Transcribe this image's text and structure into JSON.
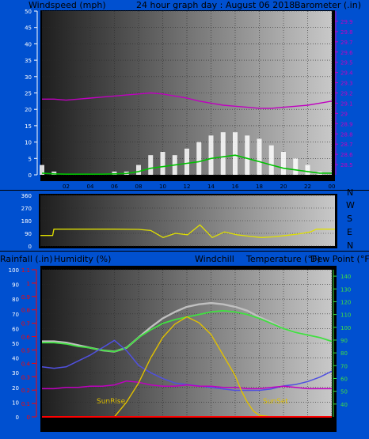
{
  "header": {
    "windspeed_label": "Windspeed (mph)",
    "title": "24 hour graph day : August 06 2018",
    "barometer_label": "Barometer (.in)"
  },
  "direction_labels": [
    "N",
    "W",
    "S",
    "E",
    "N"
  ],
  "bottom_header": {
    "rainfall_label": "Rainfall (.in)",
    "humidity_label": "Humidity (%)",
    "windchill_label": "Windchill",
    "temperature_label": "Temperature (°F)",
    "dewpoint_label": "Dew Point (°F)"
  },
  "annotations": {
    "sunrise": "SunRise",
    "sunset": "SunSet"
  },
  "x_ticks": [
    "02",
    "04",
    "06",
    "08",
    "10",
    "12",
    "14",
    "16",
    "18",
    "20",
    "22",
    "00"
  ],
  "colors": {
    "background": "#000000",
    "frame_blue": "#0050d0",
    "wind_gust": "#ffffff",
    "wind_avg": "#00c000",
    "barometer": "#c000c0",
    "direction": "#e0e000",
    "temperature": "#c0c0c0",
    "humidity": "#5050e0",
    "dewpoint": "#c000c0",
    "windchill": "#40e040",
    "solar": "#e0c000",
    "rainfall": "#ff0000"
  },
  "chart_data": [
    {
      "type": "line",
      "panel": "wind_barometer",
      "x_unit": "hour",
      "left_axis": {
        "label": "Windspeed (mph)",
        "range": [
          0,
          50
        ],
        "ticks": [
          0,
          5,
          10,
          15,
          20,
          25,
          30,
          35,
          40,
          45,
          50
        ]
      },
      "right_axis": {
        "label": "Barometer (.in)",
        "range": [
          28.4,
          30.0
        ],
        "ticks": [
          "28.5",
          "28.6",
          "28.7",
          "28.8",
          "28.9",
          "29",
          "29.1",
          "29.2",
          "29.3",
          "29.4",
          "29.5",
          "29.6",
          "29.7",
          "29.8",
          "29.9"
        ]
      },
      "series": [
        {
          "key": "wind_gust",
          "axis": "left",
          "x": [
            0,
            1,
            2,
            3,
            4,
            5,
            6,
            7,
            8,
            9,
            10,
            11,
            12,
            13,
            14,
            15,
            16,
            17,
            18,
            19,
            20,
            21,
            22,
            23,
            24
          ],
          "values": [
            3,
            1,
            0,
            0,
            0,
            0,
            1,
            1,
            3,
            6,
            7,
            6,
            8,
            10,
            12,
            13,
            13,
            12,
            11,
            9,
            7,
            5,
            3,
            1,
            0
          ]
        },
        {
          "key": "wind_avg",
          "axis": "left",
          "x": [
            0,
            1,
            2,
            3,
            4,
            5,
            6,
            7,
            8,
            9,
            10,
            11,
            12,
            13,
            14,
            15,
            16,
            17,
            18,
            19,
            20,
            21,
            22,
            23,
            24
          ],
          "values": [
            0.5,
            0.3,
            0.2,
            0.2,
            0.2,
            0.2,
            0.3,
            0.4,
            1,
            2,
            2.5,
            3,
            3.5,
            4,
            5,
            5.5,
            6,
            5,
            4,
            3,
            2,
            1.5,
            1,
            0.5,
            0.5
          ]
        },
        {
          "key": "barometer",
          "axis": "right",
          "x": [
            0,
            1,
            2,
            3,
            4,
            5,
            6,
            7,
            8,
            9,
            10,
            11,
            12,
            13,
            14,
            15,
            16,
            17,
            18,
            19,
            20,
            21,
            22,
            23,
            24
          ],
          "values": [
            29.14,
            29.14,
            29.13,
            29.14,
            29.15,
            29.16,
            29.17,
            29.18,
            29.19,
            29.2,
            29.19,
            29.17,
            29.15,
            29.12,
            29.1,
            29.08,
            29.07,
            29.06,
            29.05,
            29.05,
            29.06,
            29.07,
            29.08,
            29.1,
            29.12
          ]
        }
      ]
    },
    {
      "type": "line",
      "panel": "wind_direction",
      "x_unit": "hour",
      "left_axis": {
        "range": [
          0,
          360
        ],
        "ticks": [
          0,
          90,
          180,
          270,
          360
        ]
      },
      "series": [
        {
          "key": "direction",
          "x": [
            0,
            1,
            1.1,
            2,
            4,
            6,
            8,
            9,
            10,
            11,
            12,
            13,
            14,
            15,
            16,
            17,
            18,
            19,
            20,
            21,
            22,
            22.5,
            24
          ],
          "values": [
            75,
            75,
            120,
            120,
            120,
            120,
            118,
            110,
            60,
            90,
            80,
            150,
            60,
            100,
            80,
            70,
            60,
            65,
            75,
            85,
            100,
            120,
            120
          ]
        }
      ]
    },
    {
      "type": "line",
      "panel": "temperature_humidity",
      "x_unit": "hour",
      "left_axis": {
        "label": "Humidity (%)",
        "range": [
          0,
          100
        ],
        "ticks": [
          0,
          10,
          20,
          30,
          40,
          50,
          60,
          70,
          80,
          90,
          100
        ]
      },
      "rain_axis": {
        "label": "Rainfall (.in)",
        "range": [
          0,
          1.1
        ],
        "ticks": [
          "0",
          "0.1",
          "0.2",
          "0.3",
          "0.4",
          "0.5",
          "0.6",
          "0.7",
          "0.8",
          "0.9",
          "1",
          "1.1"
        ]
      },
      "right_axis": {
        "label": "Temperature (°F)",
        "range": [
          30,
          145
        ],
        "ticks": [
          40,
          50,
          60,
          70,
          80,
          90,
          100,
          110,
          120,
          130,
          140
        ]
      },
      "series": [
        {
          "key": "temperature",
          "axis": "right",
          "x": [
            0,
            1,
            2,
            3,
            4,
            5,
            6,
            7,
            8,
            9,
            10,
            11,
            12,
            13,
            14,
            15,
            16,
            17,
            18,
            19,
            20,
            21,
            22,
            23,
            24
          ],
          "values": [
            89,
            89,
            88,
            86,
            84,
            82,
            81,
            84,
            92,
            100,
            107,
            112,
            116,
            118,
            119,
            118,
            116,
            113,
            108,
            104,
            99,
            96,
            94,
            92,
            90
          ]
        },
        {
          "key": "windchill",
          "axis": "right",
          "x": [
            0,
            1,
            2,
            3,
            4,
            5,
            6,
            7,
            8,
            9,
            10,
            11,
            12,
            13,
            14,
            15,
            16,
            17,
            18,
            19,
            20,
            21,
            22,
            23,
            24
          ],
          "values": [
            88,
            88,
            87,
            85,
            84,
            82,
            81,
            84,
            92,
            98,
            103,
            106,
            108,
            110,
            112,
            113,
            112,
            110,
            107,
            103,
            99,
            96,
            94,
            92,
            89
          ]
        },
        {
          "key": "humidity",
          "axis": "left",
          "x": [
            0,
            1,
            2,
            3,
            4,
            5,
            6,
            7,
            8,
            9,
            10,
            11,
            12,
            13,
            14,
            15,
            16,
            17,
            18,
            19,
            20,
            21,
            22,
            23,
            24
          ],
          "values": [
            34,
            33,
            34,
            38,
            42,
            47,
            52,
            45,
            35,
            30,
            26,
            23,
            22,
            21,
            20,
            19,
            18,
            18,
            18,
            19,
            21,
            22,
            24,
            27,
            31
          ]
        },
        {
          "key": "dewpoint",
          "axis": "right",
          "x": [
            0,
            1,
            2,
            3,
            4,
            5,
            6,
            7,
            8,
            9,
            10,
            11,
            12,
            13,
            14,
            15,
            16,
            17,
            18,
            19,
            20,
            21,
            22,
            23,
            24
          ],
          "values": [
            52,
            52,
            53,
            53,
            54,
            54,
            55,
            58,
            57,
            55,
            54,
            54,
            55,
            54,
            54,
            53,
            53,
            52,
            52,
            53,
            54,
            53,
            52,
            52,
            52
          ]
        },
        {
          "key": "solar",
          "axis": "left",
          "x": [
            0,
            3,
            5,
            6,
            7,
            8,
            9,
            10,
            11,
            12,
            13,
            14,
            15,
            16,
            16.5,
            17,
            17.5,
            18,
            19,
            20,
            24
          ],
          "values": [
            0,
            0,
            0,
            0,
            10,
            23,
            40,
            54,
            63,
            68,
            64,
            56,
            42,
            28,
            18,
            10,
            4,
            1,
            0,
            0,
            0
          ]
        },
        {
          "key": "rainfall",
          "axis": "rain",
          "x": [
            0,
            24
          ],
          "values": [
            0,
            0
          ]
        }
      ]
    }
  ]
}
